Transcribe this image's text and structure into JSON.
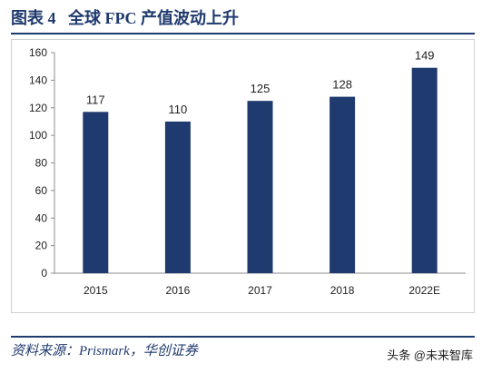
{
  "figure": {
    "title": "图表 4   全球 FPC 产值波动上升",
    "source": "资料来源：Prismark，华创证券",
    "watermark": "头条 @未来智库",
    "accent_color": "#1f3a6e"
  },
  "chart_data": {
    "type": "bar",
    "categories": [
      "2015",
      "2016",
      "2017",
      "2018",
      "2022E"
    ],
    "values": [
      117,
      110,
      125,
      128,
      149
    ],
    "data_labels": [
      "117",
      "110",
      "125",
      "128",
      "149"
    ],
    "title": "",
    "xlabel": "",
    "ylabel": "",
    "ylim": [
      0,
      160
    ],
    "yticks": [
      0,
      20,
      40,
      60,
      80,
      100,
      120,
      140,
      160
    ],
    "grid": false,
    "legend": "none",
    "bar_color": "#1f3a6e"
  }
}
